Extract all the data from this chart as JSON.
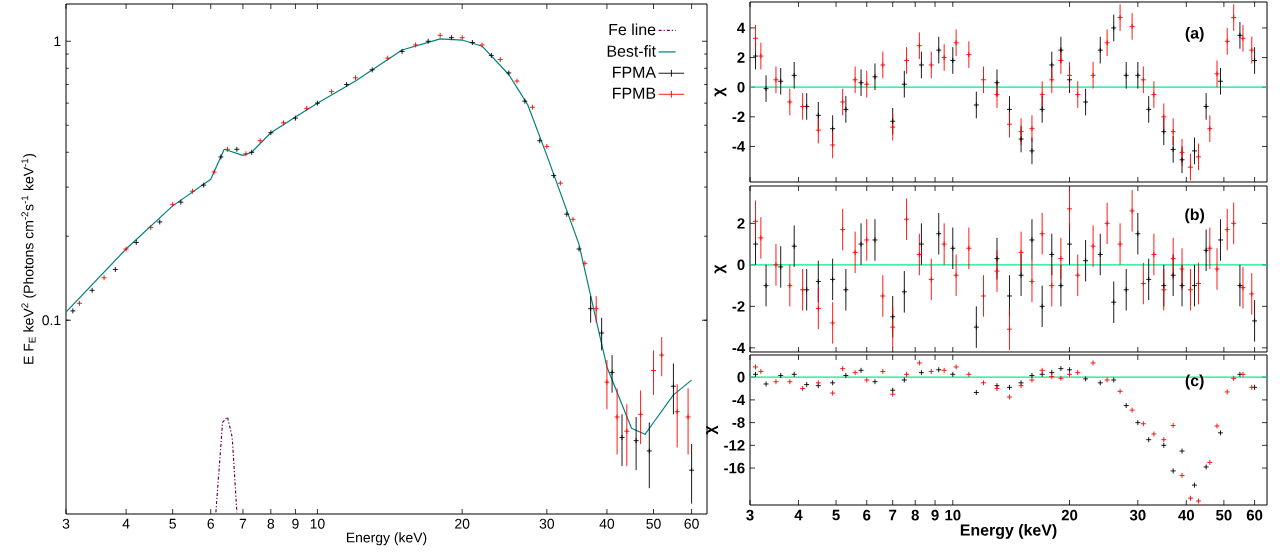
{
  "chart_data": [
    {
      "type": "scatter",
      "xlabel": "Energy (keV)",
      "ylabel": "E F$_{E}$ keV$^{2}$ (Photons cm$^{-2}$s$^{-1}$ keV$^{-1}$)",
      "log": "xy",
      "legend": "top right",
      "xlim": [
        3,
        64.6
      ],
      "ylim": [
        0.0202,
        1.36
      ],
      "xticks": [
        3,
        4,
        5,
        6,
        7,
        8,
        9,
        10,
        20,
        30,
        40,
        50,
        60
      ],
      "yticks": [
        0.1,
        1
      ],
      "series": [
        {
          "name": "Fe line",
          "type": "line",
          "line_style": "dashdot",
          "color": "#700050",
          "x": [
            6.15,
            6.35,
            6.5,
            6.65,
            6.8
          ],
          "values": [
            0.0205,
            0.043,
            0.045,
            0.038,
            0.0205
          ]
        },
        {
          "name": "Best-fit",
          "type": "line",
          "line_style": "solid",
          "color": "#008080",
          "x": [
            3,
            4,
            5,
            6,
            6.4,
            7,
            7.3,
            8,
            9,
            10,
            12,
            15,
            18,
            20,
            22,
            25,
            27.4,
            30,
            35,
            38,
            40,
            45,
            48,
            50,
            55,
            60
          ],
          "values": [
            0.107,
            0.18,
            0.257,
            0.32,
            0.41,
            0.39,
            0.4,
            0.47,
            0.535,
            0.6,
            0.72,
            0.93,
            1.02,
            1.01,
            0.96,
            0.76,
            0.59,
            0.39,
            0.187,
            0.1,
            0.068,
            0.041,
            0.039,
            0.043,
            0.054,
            0.061
          ]
        },
        {
          "name": "FPMA",
          "type": "scatter",
          "marker": "cross",
          "color": "#000000",
          "x": [
            3.1,
            3.4,
            3.8,
            4.2,
            4.7,
            5.2,
            5.8,
            6.3,
            6.8,
            7.3,
            8,
            9,
            10,
            11.5,
            13,
            15,
            17,
            19,
            21,
            23,
            25,
            27,
            29,
            31,
            33,
            35,
            37,
            39,
            41,
            43,
            46,
            49,
            55,
            60
          ],
          "values": [
            0.108,
            0.128,
            0.152,
            0.19,
            0.225,
            0.265,
            0.305,
            0.385,
            0.41,
            0.4,
            0.47,
            0.53,
            0.6,
            0.7,
            0.79,
            0.92,
            1.0,
            1.03,
            0.99,
            0.89,
            0.77,
            0.61,
            0.44,
            0.33,
            0.24,
            0.18,
            0.11,
            0.09,
            0.065,
            0.038,
            0.037,
            0.034,
            0.058,
            0.029
          ],
          "errors": [
            null,
            null,
            null,
            null,
            null,
            null,
            null,
            null,
            null,
            null,
            null,
            null,
            null,
            null,
            null,
            null,
            null,
            null,
            null,
            null,
            null,
            null,
            null,
            null,
            null,
            null,
            0.012,
            0.012,
            0.01,
            0.008,
            0.008,
            0.009,
            0.012,
            0.007
          ]
        },
        {
          "name": "FPMB",
          "type": "scatter",
          "marker": "cross",
          "color": "#ff0000",
          "x": [
            3.2,
            3.6,
            4.0,
            4.5,
            5.0,
            5.5,
            6.1,
            6.5,
            7.1,
            7.6,
            8.5,
            9.5,
            10.7,
            12,
            14,
            16,
            18,
            20,
            22,
            24,
            26,
            28,
            30,
            32,
            34,
            36,
            38,
            40,
            42,
            44,
            47,
            50,
            52,
            56,
            59
          ],
          "values": [
            0.115,
            0.142,
            0.18,
            0.215,
            0.26,
            0.29,
            0.34,
            0.41,
            0.395,
            0.44,
            0.51,
            0.575,
            0.66,
            0.74,
            0.87,
            0.97,
            1.05,
            1.03,
            0.97,
            0.86,
            0.72,
            0.58,
            0.42,
            0.31,
            0.23,
            0.16,
            0.11,
            0.06,
            0.045,
            0.04,
            0.046,
            0.066,
            0.075,
            0.047,
            0.045
          ],
          "errors": [
            null,
            null,
            null,
            null,
            null,
            null,
            null,
            null,
            null,
            null,
            null,
            null,
            null,
            null,
            null,
            null,
            null,
            null,
            null,
            null,
            null,
            null,
            null,
            null,
            null,
            null,
            0.012,
            0.012,
            0.012,
            0.01,
            0.01,
            0.012,
            0.012,
            0.012,
            0.012
          ]
        }
      ]
    },
    {
      "type": "scatter",
      "ylabel": "χ",
      "log": "x",
      "tick_labels": "y",
      "annotations": [
        "(a)"
      ],
      "marker": "cross",
      "xlim": [
        3,
        64.6
      ],
      "ylim": [
        -6.4,
        5.75
      ],
      "xticks": [
        3,
        4,
        5,
        6,
        7,
        8,
        9,
        10,
        20,
        30,
        40,
        50,
        60
      ],
      "yticks": [
        -4,
        -2,
        0,
        2,
        4
      ],
      "ref_lines": [
        {
          "axis": "y",
          "value": 0,
          "color": "#00ee88"
        }
      ],
      "series": [
        {
          "color": "#000000",
          "x": [
            3.1,
            3.3,
            3.6,
            3.9,
            4.2,
            4.5,
            4.9,
            5.3,
            5.8,
            6.3,
            7.0,
            7.5,
            8.3,
            9.2,
            10,
            11.5,
            13,
            14,
            15,
            16,
            17,
            18,
            19,
            20,
            22,
            24,
            26,
            28,
            30,
            32,
            35,
            37,
            39,
            42,
            45,
            49,
            55,
            60
          ],
          "values": [
            2.1,
            -0.1,
            0.4,
            0.8,
            -1.3,
            -1.9,
            -2.8,
            -1.5,
            0.3,
            0.7,
            -2.3,
            0.2,
            1.5,
            2.5,
            1.8,
            -1.2,
            0.3,
            -1.5,
            -3.5,
            -4.3,
            -1.5,
            1.5,
            2.5,
            0.5,
            -1.0,
            2.5,
            4.0,
            0.8,
            0.8,
            -1.5,
            -3.0,
            -4.2,
            -4.9,
            -4.3,
            -1.3,
            0.4,
            3.5,
            1.8
          ],
          "errors": [
            0.9,
            0.9,
            0.9,
            0.9,
            0.9,
            0.9,
            0.9,
            0.9,
            0.9,
            0.9,
            0.9,
            0.9,
            0.9,
            0.9,
            0.9,
            0.9,
            0.9,
            0.9,
            0.9,
            0.9,
            0.9,
            0.9,
            0.9,
            0.9,
            0.9,
            0.9,
            0.9,
            0.9,
            0.9,
            0.9,
            0.9,
            0.9,
            0.9,
            0.9,
            0.9,
            0.9,
            0.9,
            0.9
          ]
        },
        {
          "color": "#ff0000",
          "x": [
            3.1,
            3.2,
            3.5,
            3.8,
            4.1,
            4.5,
            4.9,
            5.2,
            5.6,
            6.0,
            6.6,
            7.0,
            7.6,
            8.2,
            8.8,
            9.5,
            10.2,
            11,
            12,
            13,
            14,
            15,
            16,
            17,
            18,
            19,
            20,
            21,
            23,
            25,
            27,
            29,
            31,
            33,
            35,
            37,
            39,
            41,
            43,
            46,
            48,
            51,
            53,
            56,
            59
          ],
          "values": [
            3.3,
            2.1,
            0.5,
            -1.0,
            -1.3,
            -2.9,
            -3.9,
            -1.0,
            0.5,
            0.2,
            1.5,
            -2.7,
            1.8,
            2.8,
            1.5,
            2.0,
            3.0,
            2.2,
            0.5,
            -0.5,
            -2.5,
            -3.0,
            -2.8,
            -0.5,
            0.5,
            1.8,
            0.8,
            -0.5,
            0.8,
            3.0,
            4.7,
            4.1,
            0.5,
            -0.5,
            -2.0,
            -3.0,
            -4.4,
            -5.4,
            -4.7,
            -2.8,
            0.9,
            3.1,
            4.7,
            3.3,
            2.5
          ],
          "errors": [
            0.9,
            0.9,
            0.9,
            0.9,
            0.9,
            0.9,
            0.9,
            0.9,
            0.9,
            0.9,
            0.9,
            0.9,
            0.9,
            0.9,
            0.9,
            0.9,
            0.9,
            0.9,
            0.9,
            0.9,
            0.9,
            0.9,
            0.9,
            0.9,
            0.9,
            0.9,
            0.9,
            0.9,
            0.9,
            0.9,
            0.9,
            0.9,
            0.9,
            0.9,
            0.9,
            0.9,
            0.9,
            0.9,
            0.9,
            0.9,
            0.9,
            0.9,
            0.9,
            0.9,
            0.9
          ]
        }
      ]
    },
    {
      "type": "scatter",
      "ylabel": "χ",
      "log": "x",
      "tick_labels": "y",
      "annotations": [
        "(b)"
      ],
      "marker": "cross",
      "xlim": [
        3,
        64.6
      ],
      "ylim": [
        -4.2,
        3.8
      ],
      "xticks": [
        3,
        4,
        5,
        6,
        7,
        8,
        9,
        10,
        20,
        30,
        40,
        50,
        60
      ],
      "yticks": [
        -4,
        -2,
        0,
        2
      ],
      "ref_lines": [
        {
          "axis": "y",
          "value": 0,
          "color": "#00ee88"
        }
      ],
      "series": [
        {
          "color": "#000000",
          "x": [
            3.1,
            3.3,
            3.6,
            3.9,
            4.2,
            4.5,
            4.9,
            5.3,
            5.8,
            6.3,
            7.0,
            7.5,
            8.3,
            9.2,
            10,
            11.5,
            13,
            14,
            15,
            16,
            17,
            18,
            19,
            20,
            22,
            24,
            26,
            28,
            30,
            32,
            35,
            37,
            39,
            42,
            45,
            49,
            55,
            60
          ],
          "values": [
            1.0,
            -1.0,
            -0.1,
            0.9,
            -1.2,
            -0.8,
            -0.7,
            -1.2,
            1.0,
            1.2,
            -2.5,
            -1.3,
            1.0,
            1.5,
            0.8,
            -3.0,
            0.3,
            -1.5,
            -0.5,
            1.2,
            -2.0,
            0.5,
            -1.0,
            1.0,
            0.2,
            0.5,
            -1.8,
            -1.2,
            1.5,
            -0.7,
            -1.0,
            -0.5,
            -1.0,
            -1.0,
            0.7,
            1.2,
            -1.0,
            -2.7
          ],
          "errors": [
            1,
            1,
            1,
            1,
            1,
            1,
            1,
            1,
            1,
            1,
            1,
            1,
            1,
            1,
            1,
            1,
            1,
            1,
            1,
            1,
            1,
            1,
            1,
            1,
            1,
            1,
            1,
            1,
            1,
            1,
            1,
            1,
            1,
            1,
            1,
            1,
            1,
            1
          ]
        },
        {
          "color": "#ff0000",
          "x": [
            3.1,
            3.2,
            3.5,
            3.8,
            4.1,
            4.5,
            4.9,
            5.2,
            5.6,
            6.0,
            6.6,
            7.0,
            7.6,
            8.2,
            8.8,
            9.5,
            10.2,
            11,
            12,
            13,
            14,
            15,
            16,
            17,
            18,
            19,
            20,
            21,
            23,
            25,
            27,
            29,
            31,
            33,
            35,
            37,
            39,
            41,
            43,
            46,
            48,
            51,
            53,
            56,
            59
          ],
          "values": [
            2.1,
            1.3,
            0.0,
            -1.0,
            -1.2,
            -2.1,
            -2.8,
            1.7,
            0.6,
            1.2,
            -1.5,
            -3.0,
            2.2,
            0.5,
            -0.7,
            1.0,
            -0.5,
            0.8,
            -1.5,
            -0.3,
            -3.1,
            0.6,
            -0.8,
            1.5,
            -1.0,
            0.3,
            2.7,
            -0.5,
            0.9,
            2.0,
            1.0,
            2.6,
            -0.9,
            0.5,
            -1.2,
            0.3,
            -0.2,
            -1.2,
            -0.9,
            0.8,
            -0.2,
            1.7,
            2.0,
            -1.1,
            -1.4
          ],
          "errors": [
            1,
            1,
            1,
            1,
            1,
            1,
            1,
            1,
            1,
            1,
            1,
            1,
            1,
            1,
            1,
            1,
            1,
            1,
            1,
            1,
            1,
            1,
            1,
            1,
            1,
            1,
            1,
            1,
            1,
            1,
            1,
            1,
            1,
            1,
            1,
            1,
            1,
            1,
            1,
            1,
            1,
            1,
            1,
            1,
            1
          ]
        }
      ]
    },
    {
      "type": "scatter",
      "xlabel": "Energy (keV)",
      "ylabel": "χ",
      "log": "x",
      "annotations": [
        "(c)"
      ],
      "marker": "cross",
      "xlim": [
        3,
        64.6
      ],
      "ylim": [
        -22.5,
        3.9
      ],
      "xticks": [
        3,
        4,
        5,
        6,
        7,
        8,
        9,
        10,
        20,
        30,
        40,
        50,
        60
      ],
      "yticks": [
        -16,
        -12,
        -8,
        -4,
        0
      ],
      "ref_lines": [
        {
          "axis": "y",
          "value": 0,
          "color": "#00ee88"
        }
      ],
      "series": [
        {
          "color": "#000000",
          "x": [
            3.1,
            3.3,
            3.6,
            3.9,
            4.2,
            4.5,
            4.9,
            5.3,
            5.8,
            6.3,
            7.0,
            7.5,
            8.3,
            9.2,
            10,
            11.5,
            13,
            14,
            15,
            16,
            17,
            18,
            19,
            20,
            22,
            24,
            26,
            28,
            30,
            32,
            35,
            37,
            39,
            42,
            45,
            49,
            55,
            60
          ],
          "values": [
            0.5,
            -1.2,
            0.3,
            0.5,
            -1.3,
            -1.5,
            -1.0,
            0.3,
            1.2,
            -0.8,
            -2.3,
            -0.5,
            0.8,
            1.3,
            0.5,
            -2.7,
            -1.5,
            -1.8,
            -1.0,
            0.3,
            0.5,
            0.8,
            1.5,
            1.3,
            -0.3,
            -1.0,
            -0.5,
            -5.0,
            -8.0,
            -11.0,
            -12.0,
            -16.5,
            -13.0,
            -19.0,
            -15.8,
            -9.8,
            0.5,
            -1.8
          ]
        },
        {
          "color": "#ff0000",
          "x": [
            3.1,
            3.2,
            3.5,
            3.8,
            4.1,
            4.5,
            4.9,
            5.2,
            5.6,
            6.0,
            6.6,
            7.0,
            7.6,
            8.2,
            8.8,
            9.5,
            10.2,
            11,
            12,
            13,
            14,
            15,
            16,
            17,
            18,
            19,
            20,
            21,
            23,
            25,
            27,
            29,
            31,
            33,
            35,
            37,
            39,
            41,
            43,
            46,
            48,
            51,
            53,
            56,
            59
          ],
          "values": [
            1.8,
            1.0,
            -0.8,
            -0.8,
            -2.0,
            -1.0,
            -2.8,
            1.5,
            0.8,
            -0.5,
            1.0,
            -3.0,
            0.5,
            2.5,
            1.0,
            1.2,
            1.8,
            0.5,
            -1.0,
            -2.0,
            -3.5,
            -1.5,
            -0.5,
            1.2,
            0.1,
            -0.2,
            0.5,
            0.8,
            2.5,
            -0.5,
            -2.5,
            -5.8,
            -8.2,
            -10.0,
            -11.0,
            -8.5,
            -17.3,
            -21.3,
            -21.8,
            -15.0,
            -8.6,
            -2.6,
            -0.2,
            0.5,
            -1.8
          ]
        }
      ]
    }
  ]
}
